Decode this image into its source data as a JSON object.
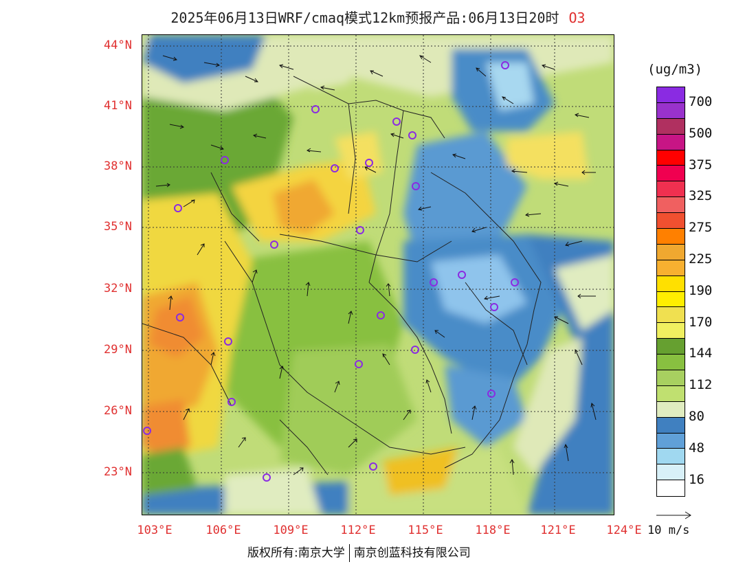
{
  "header": {
    "title": "2025年06月13日WRF/cmaq模式12km预报产品:06月13日20时",
    "variable": "O3"
  },
  "axes": {
    "latitudes": [
      "44°N",
      "41°N",
      "38°N",
      "35°N",
      "32°N",
      "29°N",
      "26°N",
      "23°N"
    ],
    "longitudes": [
      "103°E",
      "106°E",
      "109°E",
      "112°E",
      "115°E",
      "118°E",
      "121°E",
      "124°E"
    ]
  },
  "legend": {
    "unit": "(ug/m3)",
    "colors": [
      "#8a2be2",
      "#9932cc",
      "#b03060",
      "#c71585",
      "#ff0000",
      "#f00050",
      "#f03050",
      "#f06060",
      "#f05030",
      "#ff8000",
      "#f0a830",
      "#f8b030",
      "#ffe000",
      "#ffee00",
      "#f0e050",
      "#f0f060",
      "#66a030",
      "#88c040",
      "#a8d060",
      "#c0e070",
      "#e0ecc0",
      "#4080c0",
      "#60a0d8",
      "#a0d8f0",
      "#d8f0f8",
      "#ffffff"
    ],
    "labels": [
      "700",
      "500",
      "375",
      "325",
      "275",
      "225",
      "190",
      "170",
      "144",
      "112",
      "80",
      "48",
      "16"
    ]
  },
  "wind_reference": {
    "label": "10 m/s"
  },
  "footer": {
    "copyright": "版权所有:南京大学",
    "company": "南京创蓝科技有限公司"
  }
}
